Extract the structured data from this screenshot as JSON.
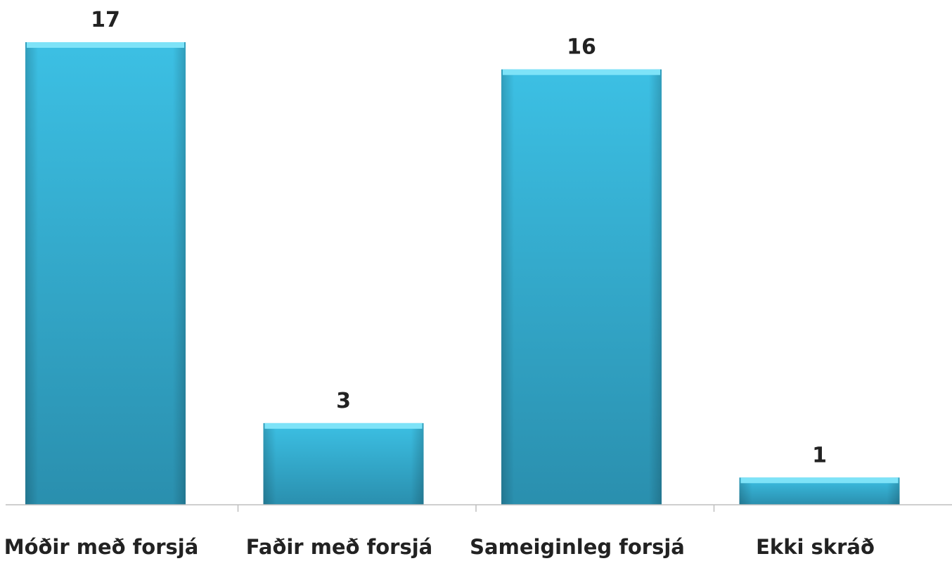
{
  "chart_data": {
    "type": "bar",
    "categories": [
      "Móðir með forsjá",
      "Faðir með forsjá",
      "Sameiginleg forsjá",
      "Ekki skráð"
    ],
    "values": [
      17,
      3,
      16,
      1
    ],
    "data_labels": [
      "17",
      "3",
      "16",
      "1"
    ],
    "ylim": [
      0,
      17
    ],
    "grid": false,
    "legend": "none",
    "colors": {
      "bar_top": "#3cc0e4",
      "bar_bottom": "#2a8fae",
      "bar_cap": "#7ee3f8",
      "axis": "#bfbfbf"
    }
  }
}
